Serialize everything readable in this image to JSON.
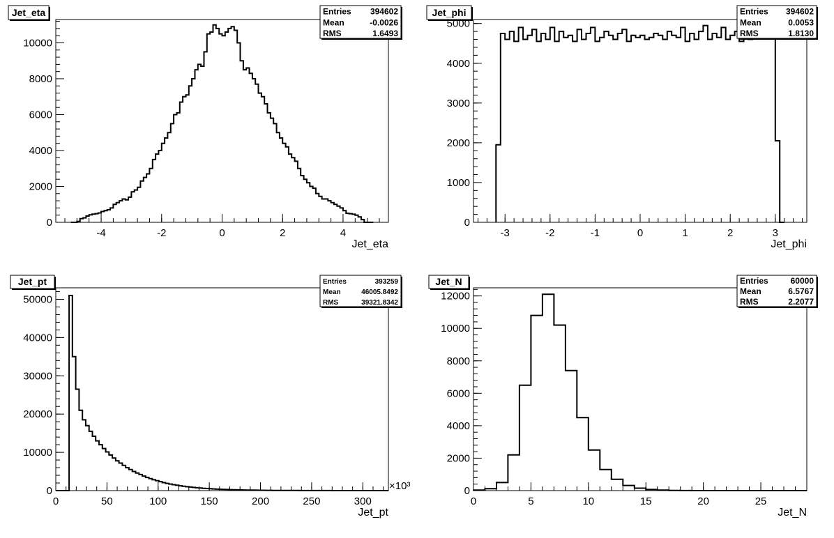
{
  "chart_data": [
    {
      "type": "bar",
      "title": "Jet_eta",
      "xlabel": "Jet_eta",
      "ylabel": "",
      "xlim": [
        -5.5,
        5.5
      ],
      "ylim": [
        0,
        11300
      ],
      "x_ticks": [
        -4,
        -2,
        0,
        2,
        4
      ],
      "y_ticks": [
        0,
        2000,
        4000,
        6000,
        8000,
        10000
      ],
      "stats": {
        "entries_label": "Entries",
        "entries": "394602",
        "mean_label": "Mean",
        "mean": "-0.0026",
        "rms_label": "RMS",
        "rms": "1.6493"
      },
      "bin_edges": [
        -5.0,
        -4.9,
        -4.8,
        -4.7,
        -4.6,
        -4.5,
        -4.4,
        -4.3,
        -4.2,
        -4.1,
        -4.0,
        -3.9,
        -3.8,
        -3.7,
        -3.6,
        -3.5,
        -3.4,
        -3.3,
        -3.2,
        -3.1,
        -3.0,
        -2.9,
        -2.8,
        -2.7,
        -2.6,
        -2.5,
        -2.4,
        -2.3,
        -2.2,
        -2.1,
        -2.0,
        -1.9,
        -1.8,
        -1.7,
        -1.6,
        -1.5,
        -1.4,
        -1.3,
        -1.2,
        -1.1,
        -1.0,
        -0.9,
        -0.8,
        -0.7,
        -0.6,
        -0.5,
        -0.4,
        -0.3,
        -0.2,
        -0.1,
        0.0,
        0.1,
        0.2,
        0.3,
        0.4,
        0.5,
        0.6,
        0.7,
        0.8,
        0.9,
        1.0,
        1.1,
        1.2,
        1.3,
        1.4,
        1.5,
        1.6,
        1.7,
        1.8,
        1.9,
        2.0,
        2.1,
        2.2,
        2.3,
        2.4,
        2.5,
        2.6,
        2.7,
        2.8,
        2.9,
        3.0,
        3.1,
        3.2,
        3.3,
        3.4,
        3.5,
        3.6,
        3.7,
        3.8,
        3.9,
        4.0,
        4.1,
        4.2,
        4.3,
        4.4,
        4.5,
        4.6,
        4.7,
        4.8,
        4.9,
        5.0
      ],
      "values": [
        0,
        0,
        50,
        200,
        250,
        350,
        420,
        460,
        480,
        520,
        600,
        650,
        700,
        800,
        1000,
        1100,
        1200,
        1300,
        1250,
        1400,
        1700,
        1800,
        1950,
        2300,
        2500,
        2700,
        3000,
        3500,
        3800,
        4000,
        4400,
        4700,
        5000,
        5500,
        6000,
        6100,
        6700,
        7000,
        7100,
        7600,
        8000,
        8500,
        8800,
        8700,
        9500,
        10500,
        10600,
        11000,
        10800,
        10500,
        10400,
        10600,
        10800,
        10900,
        10700,
        10000,
        9000,
        8500,
        8600,
        8300,
        8000,
        7700,
        7200,
        7000,
        6600,
        6100,
        5800,
        5500,
        5000,
        4700,
        4400,
        4200,
        3800,
        3600,
        3400,
        3000,
        2600,
        2400,
        2200,
        2000,
        1900,
        1600,
        1450,
        1300,
        1300,
        1200,
        1100,
        1000,
        900,
        800,
        650,
        500,
        480,
        450,
        400,
        300,
        150,
        0,
        0,
        0
      ]
    },
    {
      "type": "bar",
      "title": "Jet_phi",
      "xlabel": "Jet_phi",
      "ylabel": "",
      "xlim": [
        -3.7,
        3.7
      ],
      "ylim": [
        0,
        5100
      ],
      "x_ticks": [
        -3,
        -2,
        -1,
        0,
        1,
        2,
        3
      ],
      "y_ticks": [
        0,
        1000,
        2000,
        3000,
        4000,
        5000
      ],
      "stats": {
        "entries_label": "Entries",
        "entries": "394602",
        "mean_label": "Mean",
        "mean": "0.0053",
        "rms_label": "RMS",
        "rms": "1.8130"
      },
      "bin_edges": [
        -3.2,
        -3.1,
        -3.0,
        -2.9,
        -2.8,
        -2.7,
        -2.6,
        -2.5,
        -2.4,
        -2.3,
        -2.2,
        -2.1,
        -2.0,
        -1.9,
        -1.8,
        -1.7,
        -1.6,
        -1.5,
        -1.4,
        -1.3,
        -1.2,
        -1.1,
        -1.0,
        -0.9,
        -0.8,
        -0.7,
        -0.6,
        -0.5,
        -0.4,
        -0.3,
        -0.2,
        -0.1,
        0.0,
        0.1,
        0.2,
        0.3,
        0.4,
        0.5,
        0.6,
        0.7,
        0.8,
        0.9,
        1.0,
        1.1,
        1.2,
        1.3,
        1.4,
        1.5,
        1.6,
        1.7,
        1.8,
        1.9,
        2.0,
        2.1,
        2.2,
        2.3,
        2.4,
        2.5,
        2.6,
        2.7,
        2.8,
        2.9,
        3.0,
        3.1,
        3.2
      ],
      "values": [
        1950,
        4750,
        4600,
        4800,
        4550,
        4900,
        4600,
        4700,
        4850,
        4550,
        4750,
        4600,
        4900,
        4550,
        4800,
        4650,
        4700,
        4550,
        4850,
        4600,
        4750,
        4900,
        4550,
        4650,
        4800,
        4700,
        4600,
        4750,
        4850,
        4550,
        4700,
        4650,
        4700,
        4600,
        4650,
        4750,
        4700,
        4600,
        4800,
        4700,
        4650,
        4900,
        4550,
        4750,
        4600,
        4800,
        4950,
        4600,
        4750,
        4650,
        4900,
        4600,
        4700,
        4800,
        4550,
        4750,
        4600,
        4850,
        4700,
        4800,
        4650,
        4700,
        2050,
        0
      ]
    },
    {
      "type": "bar",
      "title": "Jet_pt",
      "xlabel": "Jet_pt",
      "ylabel": "",
      "x_multiplier": "×10³",
      "xlim": [
        0,
        325
      ],
      "ylim": [
        0,
        53000
      ],
      "x_ticks": [
        0,
        50,
        100,
        150,
        200,
        250,
        300
      ],
      "y_ticks": [
        0,
        10000,
        20000,
        30000,
        40000,
        50000
      ],
      "stats": {
        "entries_label": "Entries",
        "entries": "393259",
        "mean_label": "Mean",
        "mean": "46005.8492",
        "rms_label": "RMS",
        "rms": "39321.8342"
      },
      "bin_edges": [
        0,
        3.25,
        6.5,
        9.75,
        13,
        16.25,
        19.5,
        22.75,
        26,
        29.25,
        32.5,
        35.75,
        39,
        42.25,
        45.5,
        48.75,
        52,
        55.25,
        58.5,
        61.75,
        65,
        68.25,
        71.5,
        74.75,
        78,
        81.25,
        84.5,
        87.75,
        91,
        94.25,
        97.5,
        100.75,
        104,
        107.25,
        110.5,
        113.75,
        117,
        120.25,
        123.5,
        126.75,
        130,
        133.25,
        136.5,
        139.75,
        143,
        146.25,
        149.5,
        152.75,
        156,
        159.25,
        162.5,
        165.75,
        169,
        172.25,
        175.5,
        178.75,
        182,
        185.25,
        188.5,
        191.75,
        195,
        198.25,
        201.5,
        204.75,
        208,
        211.25,
        214.5,
        217.75,
        221,
        224.25,
        227.5,
        230.75,
        234,
        237.25,
        240.5,
        243.75,
        247,
        250.25,
        253.5,
        256.75,
        260,
        263.25,
        266.5,
        269.75,
        273,
        276.25,
        279.5,
        282.75,
        286,
        289.25,
        292.5,
        295.75,
        299,
        302.25,
        305.5,
        308.75,
        312,
        315.25,
        318.5,
        321.75,
        325
      ],
      "values": [
        0,
        0,
        0,
        0,
        51000,
        35000,
        26500,
        21000,
        18500,
        17000,
        15500,
        14200,
        13000,
        12000,
        11000,
        10100,
        9300,
        8500,
        7800,
        7200,
        6600,
        6000,
        5500,
        5000,
        4600,
        4200,
        3800,
        3450,
        3150,
        2850,
        2600,
        2350,
        2100,
        1900,
        1720,
        1550,
        1400,
        1260,
        1130,
        1020,
        920,
        830,
        750,
        670,
        600,
        540,
        485,
        435,
        390,
        350,
        315,
        285,
        255,
        230,
        205,
        185,
        165,
        150,
        135,
        120,
        108,
        97,
        87,
        78,
        70,
        63,
        56,
        50,
        45,
        40,
        36,
        32,
        29,
        26,
        23,
        21,
        19,
        17,
        15,
        13,
        12,
        11,
        10,
        9,
        8,
        7,
        6,
        5,
        5,
        4,
        4,
        3,
        3,
        2,
        2,
        2,
        1,
        1,
        1,
        1
      ]
    },
    {
      "type": "bar",
      "title": "Jet_N",
      "xlabel": "Jet_N",
      "ylabel": "",
      "xlim": [
        0,
        29
      ],
      "ylim": [
        0,
        12500
      ],
      "x_ticks": [
        0,
        5,
        10,
        15,
        20,
        25
      ],
      "y_ticks": [
        0,
        2000,
        4000,
        6000,
        8000,
        10000,
        12000
      ],
      "stats": {
        "entries_label": "Entries",
        "entries": "60000",
        "mean_label": "Mean",
        "mean": "6.5767",
        "rms_label": "RMS",
        "rms": "2.2077"
      },
      "bin_edges": [
        0,
        1,
        2,
        3,
        4,
        5,
        6,
        7,
        8,
        9,
        10,
        11,
        12,
        13,
        14,
        15,
        16,
        17,
        18,
        19,
        20,
        21,
        22,
        23,
        24,
        25,
        26,
        27,
        28,
        29
      ],
      "values": [
        30,
        120,
        500,
        2200,
        6500,
        10800,
        12100,
        10200,
        7400,
        4500,
        2500,
        1300,
        700,
        320,
        150,
        70,
        30,
        12,
        5,
        2,
        1,
        0,
        0,
        0,
        0,
        0,
        0,
        0,
        0
      ]
    }
  ],
  "colors": {
    "line": "#000000",
    "background": "#ffffff",
    "frame": "#000000"
  }
}
